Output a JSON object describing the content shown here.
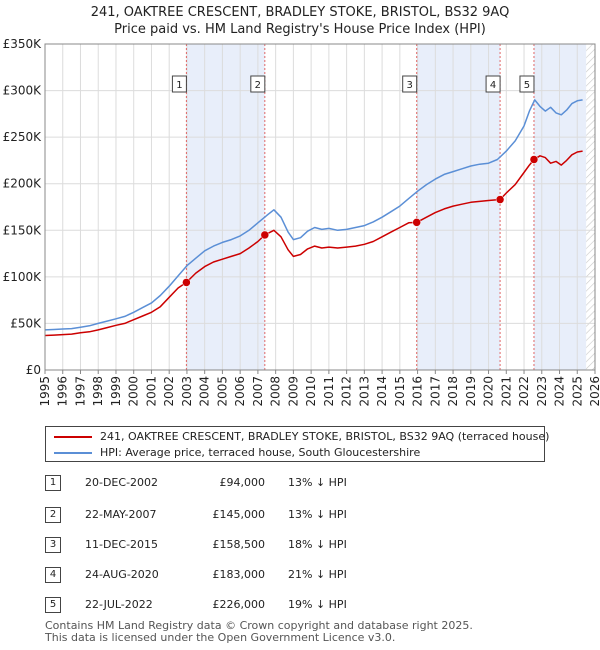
{
  "title": {
    "line1": "241, OAKTREE CRESCENT, BRADLEY STOKE, BRISTOL, BS32 9AQ",
    "line2": "Price paid vs. HM Land Registry's House Price Index (HPI)"
  },
  "legend": {
    "property_label": "241, OAKTREE CRESCENT, BRADLEY STOKE, BRISTOL, BS32 9AQ (terraced house)",
    "hpi_label": "HPI: Average price, terraced house, South Gloucestershire"
  },
  "colors": {
    "property_line": "#cc0000",
    "hpi_line": "#5b8fd6",
    "shade": "#e8eefa",
    "marker_line": "#e06666"
  },
  "sales": [
    {
      "num": "1",
      "date": "20-DEC-2002",
      "price": "£94,000",
      "hpi": "13% ↓ HPI"
    },
    {
      "num": "2",
      "date": "22-MAY-2007",
      "price": "£145,000",
      "hpi": "13% ↓ HPI"
    },
    {
      "num": "3",
      "date": "11-DEC-2015",
      "price": "£158,500",
      "hpi": "18% ↓ HPI"
    },
    {
      "num": "4",
      "date": "24-AUG-2020",
      "price": "£183,000",
      "hpi": "21% ↓ HPI"
    },
    {
      "num": "5",
      "date": "22-JUL-2022",
      "price": "£226,000",
      "hpi": "19% ↓ HPI"
    }
  ],
  "footer": {
    "line1": "Contains HM Land Registry data © Crown copyright and database right 2025.",
    "line2": "This data is licensed under the Open Government Licence v3.0."
  },
  "chart_data": {
    "type": "line",
    "title": "241, OAKTREE CRESCENT, BRADLEY STOKE, BRISTOL, BS32 9AQ",
    "subtitle": "Price paid vs. HM Land Registry's House Price Index (HPI)",
    "xlabel": "",
    "ylabel": "",
    "xlim": [
      1995,
      2026
    ],
    "ylim": [
      0,
      350000
    ],
    "x_ticks": [
      "1995",
      "1996",
      "1997",
      "1998",
      "1999",
      "2000",
      "2001",
      "2002",
      "2003",
      "2004",
      "2005",
      "2006",
      "2007",
      "2008",
      "2009",
      "2010",
      "2011",
      "2012",
      "2013",
      "2014",
      "2015",
      "2016",
      "2017",
      "2018",
      "2019",
      "2020",
      "2021",
      "2022",
      "2023",
      "2024",
      "2025",
      "2026"
    ],
    "y_ticks": [
      {
        "value": 0,
        "label": "£0"
      },
      {
        "value": 50000,
        "label": "£50K"
      },
      {
        "value": 100000,
        "label": "£100K"
      },
      {
        "value": 150000,
        "label": "£150K"
      },
      {
        "value": 200000,
        "label": "£200K"
      },
      {
        "value": 250000,
        "label": "£250K"
      },
      {
        "value": 300000,
        "label": "£300K"
      },
      {
        "value": 350000,
        "label": "£350K"
      }
    ],
    "grid": true,
    "legend_position": "below",
    "shaded_periods": [
      [
        2002.97,
        2007.39
      ],
      [
        2015.95,
        2020.65
      ],
      [
        2022.56,
        2025.5
      ]
    ],
    "future_hatch_from": 2025.5,
    "transactions": [
      {
        "label": "1",
        "x": 2002.97,
        "y": 94000
      },
      {
        "label": "2",
        "x": 2007.39,
        "y": 145000
      },
      {
        "label": "3",
        "x": 2015.95,
        "y": 158500
      },
      {
        "label": "4",
        "x": 2020.65,
        "y": 183000
      },
      {
        "label": "5",
        "x": 2022.56,
        "y": 226000
      }
    ],
    "series": [
      {
        "name": "HPI: Average price, terraced house, South Gloucestershire",
        "x": [
          1995,
          1995.5,
          1996,
          1996.5,
          1997,
          1997.5,
          1998,
          1998.5,
          1999,
          1999.5,
          2000,
          2000.5,
          2001,
          2001.5,
          2002,
          2002.5,
          2003,
          2003.5,
          2004,
          2004.5,
          2005,
          2005.5,
          2006,
          2006.5,
          2007,
          2007.5,
          2007.9,
          2008.3,
          2008.7,
          2009.0,
          2009.4,
          2009.8,
          2010.2,
          2010.6,
          2011.0,
          2011.5,
          2012.0,
          2012.5,
          2013.0,
          2013.5,
          2014.0,
          2014.5,
          2015.0,
          2015.5,
          2016.0,
          2016.5,
          2017.0,
          2017.5,
          2018.0,
          2018.5,
          2019.0,
          2019.5,
          2020.0,
          2020.5,
          2021.0,
          2021.5,
          2022.0,
          2022.3,
          2022.6,
          2022.9,
          2023.2,
          2023.5,
          2023.8,
          2024.1,
          2024.4,
          2024.7,
          2025.0,
          2025.3
        ],
        "y": [
          43000,
          43500,
          44000,
          44500,
          46000,
          47500,
          50000,
          52500,
          55000,
          57500,
          62000,
          67000,
          72000,
          80000,
          90000,
          101000,
          112000,
          120000,
          128000,
          133000,
          137000,
          140000,
          144000,
          150000,
          158000,
          166000,
          172000,
          164000,
          148000,
          140000,
          142000,
          149000,
          153000,
          151000,
          152000,
          150000,
          151000,
          153000,
          155000,
          159000,
          164000,
          170000,
          176000,
          184000,
          192000,
          199000,
          205000,
          210000,
          213000,
          216000,
          219000,
          221000,
          222000,
          226000,
          235000,
          246000,
          262000,
          278000,
          290000,
          283000,
          278000,
          282000,
          276000,
          274000,
          279000,
          286000,
          289000,
          290000
        ]
      },
      {
        "name": "241, OAKTREE CRESCENT, BRADLEY STOKE, BRISTOL, BS32 9AQ (terraced house)",
        "x": [
          1995,
          1995.5,
          1996,
          1996.5,
          1997,
          1997.5,
          1998,
          1998.5,
          1999,
          1999.5,
          2000,
          2000.5,
          2001,
          2001.5,
          2002,
          2002.5,
          2002.97,
          2003.5,
          2004,
          2004.5,
          2005,
          2005.5,
          2006,
          2006.5,
          2007,
          2007.39,
          2007.9,
          2008.3,
          2008.7,
          2009.0,
          2009.4,
          2009.8,
          2010.2,
          2010.6,
          2011.0,
          2011.5,
          2012.0,
          2012.5,
          2013.0,
          2013.5,
          2014.0,
          2014.5,
          2015.0,
          2015.5,
          2015.95,
          2016.5,
          2017.0,
          2017.5,
          2018.0,
          2018.5,
          2019.0,
          2019.5,
          2020.0,
          2020.65,
          2021.0,
          2021.5,
          2022.0,
          2022.3,
          2022.56,
          2022.9,
          2023.2,
          2023.5,
          2023.8,
          2024.1,
          2024.4,
          2024.7,
          2025.0,
          2025.3
        ],
        "y": [
          37000,
          37500,
          38000,
          38500,
          40000,
          41000,
          43000,
          45500,
          48000,
          50000,
          54000,
          58000,
          62000,
          68000,
          78000,
          88000,
          94000,
          104000,
          111000,
          116000,
          119000,
          122000,
          125000,
          131000,
          138000,
          145000,
          150000,
          143000,
          129000,
          122000,
          124000,
          130000,
          133000,
          131000,
          132000,
          131000,
          132000,
          133000,
          135000,
          138000,
          143000,
          148000,
          153000,
          158000,
          158500,
          164000,
          169000,
          173000,
          176000,
          178000,
          180000,
          181000,
          182000,
          183000,
          190000,
          199000,
          212000,
          220000,
          226000,
          230000,
          228000,
          222000,
          224000,
          220000,
          225000,
          231000,
          234000,
          235000
        ]
      }
    ]
  }
}
